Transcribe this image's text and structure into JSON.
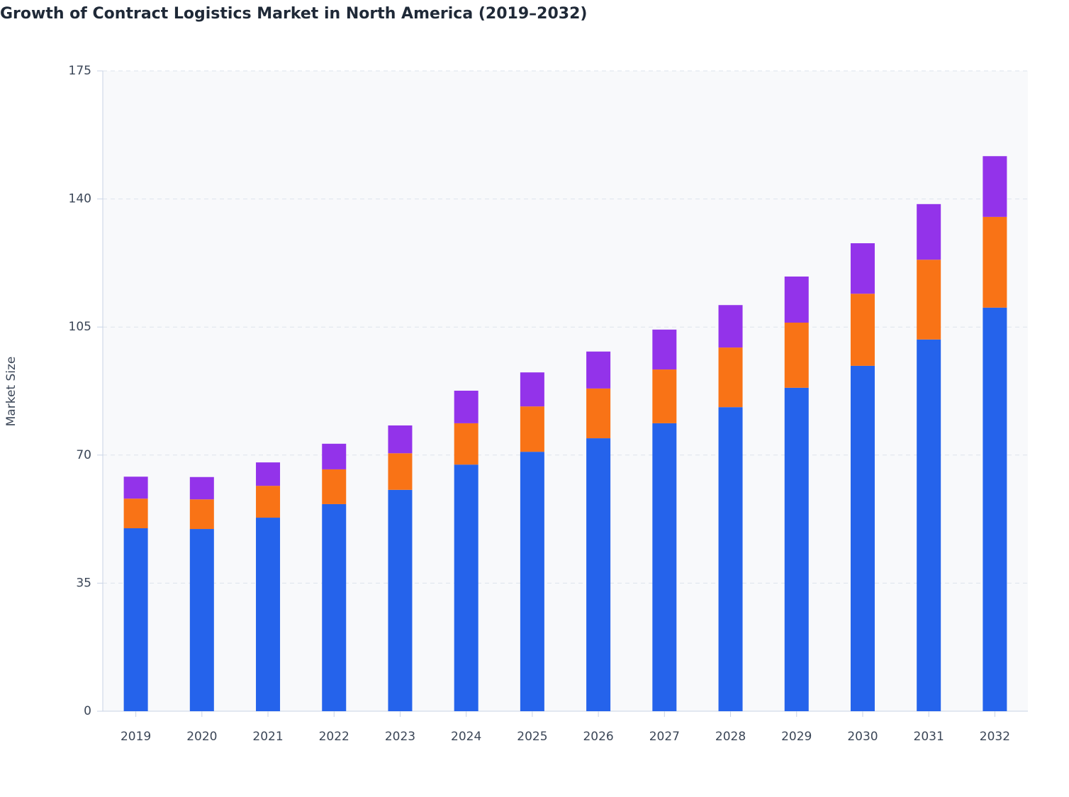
{
  "chart_data": {
    "type": "stacked_bar",
    "title": "Growth of Contract Logistics Market in North America (2019–2032)",
    "y_label": "Market Size",
    "categories": [
      "2019",
      "2020",
      "2021",
      "2022",
      "2023",
      "2024",
      "2025",
      "2026",
      "2027",
      "2028",
      "2029",
      "2030",
      "2031",
      "2032"
    ],
    "series": [
      {
        "color": "#2563eb",
        "values": [
          50.0,
          49.8,
          52.9,
          56.6,
          60.5,
          67.4,
          70.9,
          74.6,
          78.7,
          83.1,
          88.4,
          94.4,
          101.6,
          110.3
        ]
      },
      {
        "color": "#f97316",
        "values": [
          8.1,
          8.1,
          8.7,
          9.5,
          10.0,
          11.3,
          12.4,
          13.6,
          14.7,
          16.3,
          17.8,
          19.7,
          21.8,
          24.8
        ]
      },
      {
        "color": "#9333ea",
        "values": [
          6.0,
          6.1,
          6.4,
          7.0,
          7.6,
          8.9,
          9.3,
          10.1,
          10.9,
          11.6,
          12.6,
          13.8,
          15.2,
          16.6
        ]
      }
    ],
    "ylim": [
      0,
      175
    ],
    "yticks": [
      0,
      35,
      70,
      105,
      140,
      175
    ],
    "grid": true
  }
}
